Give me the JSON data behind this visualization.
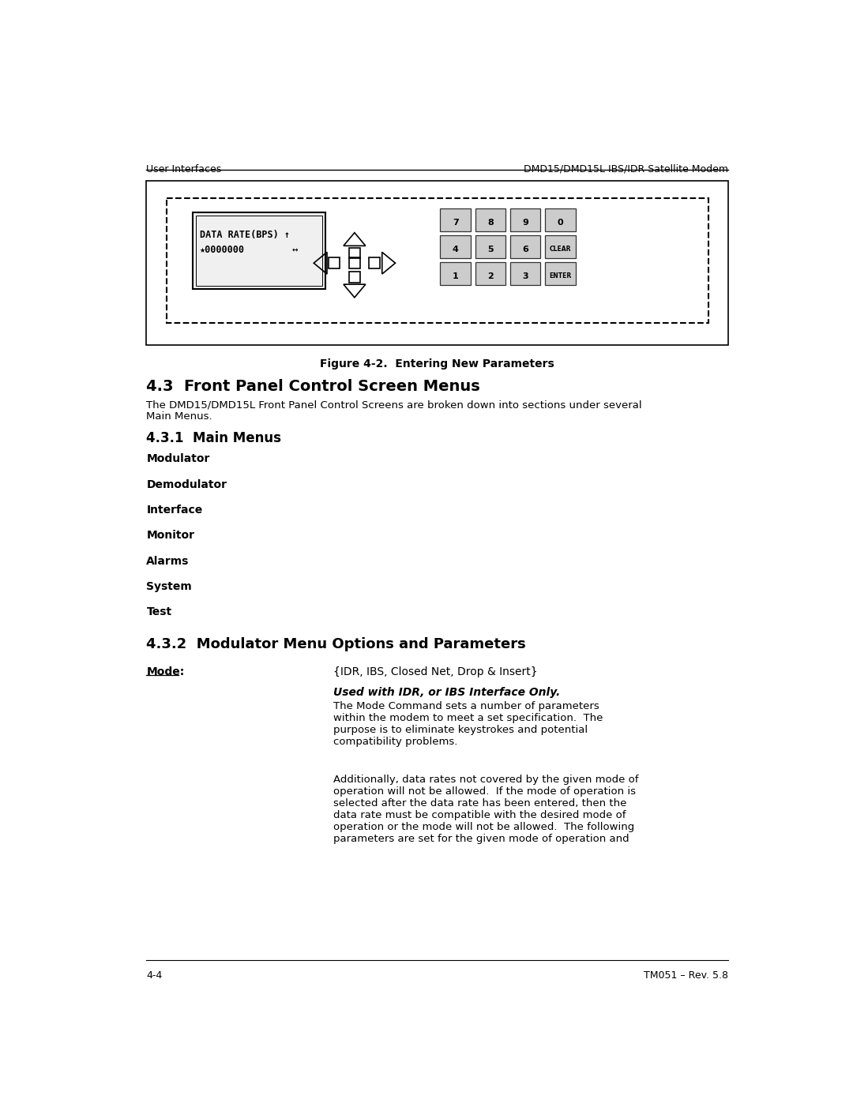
{
  "header_left": "User Interfaces",
  "header_right": "DMD15/DMD15L IBS/IDR Satellite Modem",
  "footer_left": "4-4",
  "footer_right": "TM051 – Rev. 5.8",
  "fig_caption": "Figure 4-2.  Entering New Parameters",
  "section_43_title": "4.3  Front Panel Control Screen Menus",
  "section_43_body": "The DMD15/DMD15L Front Panel Control Screens are broken down into sections under several\nMain Menus.",
  "section_431_title": "4.3.1  Main Menus",
  "main_menus": [
    "Modulator",
    "Demodulator",
    "Interface",
    "Monitor",
    "Alarms",
    "System",
    "Test"
  ],
  "section_432_title": "4.3.2  Modulator Menu Options and Parameters",
  "mode_label": "Mode:",
  "mode_options": "{IDR, IBS, Closed Net, Drop & Insert}",
  "mode_italic_bold": "Used with IDR, or IBS Interface Only.",
  "mode_para1": "The Mode Command sets a number of parameters\nwithin the modem to meet a set specification.  The\npurpose is to eliminate keystrokes and potential\ncompatibility problems.",
  "mode_para2": "Additionally, data rates not covered by the given mode of\noperation will not be allowed.  If the mode of operation is\nselected after the data rate has been entered, then the\ndata rate must be compatible with the desired mode of\noperation or the mode will not be allowed.  The following\nparameters are set for the given mode of operation and",
  "bg_color": "#ffffff",
  "text_color": "#000000"
}
